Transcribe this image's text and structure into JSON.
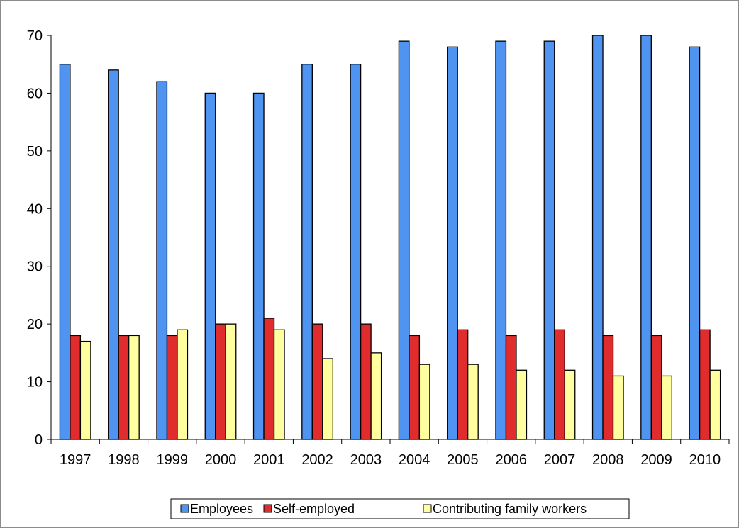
{
  "chart_data": {
    "type": "bar",
    "title": "",
    "xlabel": "",
    "ylabel": "",
    "categories": [
      "1997",
      "1998",
      "1999",
      "2000",
      "2001",
      "2002",
      "2003",
      "2004",
      "2005",
      "2006",
      "2007",
      "2008",
      "2009",
      "2010"
    ],
    "series": [
      {
        "name": "Employees",
        "color": "#4f94f0",
        "values": [
          65,
          64,
          62,
          60,
          60,
          65,
          65,
          69,
          68,
          69,
          69,
          70,
          70,
          68
        ]
      },
      {
        "name": "Self-employed",
        "color": "#e02c2c",
        "values": [
          18,
          18,
          18,
          20,
          21,
          20,
          20,
          18,
          19,
          18,
          19,
          18,
          18,
          19
        ]
      },
      {
        "name": "Contributing family workers",
        "color": "#ffffa0",
        "values": [
          17,
          18,
          19,
          20,
          19,
          14,
          15,
          13,
          13,
          12,
          12,
          11,
          11,
          12
        ]
      }
    ],
    "ylim": [
      0,
      70
    ],
    "yticks": [
      "0",
      "10",
      "20",
      "30",
      "40",
      "50",
      "60",
      "70"
    ],
    "grid": false,
    "legend_position": "bottom"
  }
}
